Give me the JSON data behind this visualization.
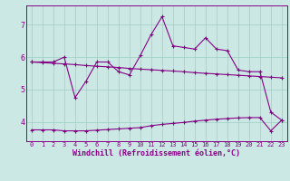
{
  "x_range": [
    -0.5,
    23.5
  ],
  "y_range": [
    3.4,
    7.6
  ],
  "yticks": [
    4,
    5,
    6,
    7
  ],
  "xticks": [
    0,
    1,
    2,
    3,
    4,
    5,
    6,
    7,
    8,
    9,
    10,
    11,
    12,
    13,
    14,
    15,
    16,
    17,
    18,
    19,
    20,
    21,
    22,
    23
  ],
  "xlabel": "Windchill (Refroidissement éolien,°C)",
  "bg_color": "#cce8e4",
  "line_color": "#880088",
  "curve1_x": [
    0,
    1,
    2,
    3,
    4,
    5,
    6,
    7,
    8,
    9,
    10,
    11,
    12,
    13,
    14,
    15,
    16,
    17,
    18,
    19,
    20,
    21,
    22,
    23
  ],
  "curve1_y": [
    5.85,
    5.85,
    5.85,
    6.0,
    4.75,
    5.25,
    5.85,
    5.85,
    5.55,
    5.45,
    6.05,
    6.7,
    7.25,
    6.35,
    6.3,
    6.25,
    6.6,
    6.25,
    6.2,
    5.6,
    5.55,
    5.55,
    4.3,
    4.05
  ],
  "curve2_x": [
    0,
    1,
    2,
    3,
    4,
    5,
    6,
    7,
    8,
    9,
    10,
    11,
    12,
    13,
    14,
    15,
    16,
    17,
    18,
    19,
    20,
    21,
    22,
    23
  ],
  "curve2_y": [
    5.85,
    5.83,
    5.81,
    5.79,
    5.77,
    5.74,
    5.72,
    5.7,
    5.68,
    5.65,
    5.63,
    5.61,
    5.59,
    5.57,
    5.55,
    5.52,
    5.5,
    5.48,
    5.46,
    5.44,
    5.42,
    5.4,
    5.38,
    5.36
  ],
  "curve3_x": [
    0,
    1,
    2,
    3,
    4,
    5,
    6,
    7,
    8,
    9,
    10,
    11,
    12,
    13,
    14,
    15,
    16,
    17,
    18,
    19,
    20,
    21,
    22,
    23
  ],
  "curve3_y": [
    3.75,
    3.75,
    3.75,
    3.72,
    3.72,
    3.72,
    3.74,
    3.76,
    3.78,
    3.8,
    3.82,
    3.88,
    3.92,
    3.95,
    3.98,
    4.02,
    4.05,
    4.08,
    4.1,
    4.12,
    4.13,
    4.13,
    3.72,
    4.05
  ],
  "tick_fontsize": 5,
  "xlabel_fontsize": 6,
  "ytick_fontsize": 6
}
